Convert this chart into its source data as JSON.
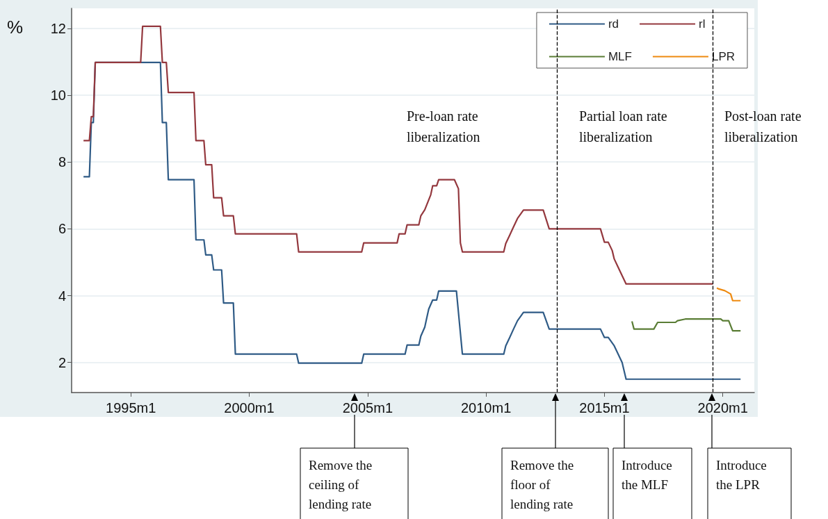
{
  "chart_data": {
    "type": "line",
    "ylabel": "%",
    "xlim": [
      "1992-07",
      "2021-05"
    ],
    "xticks": [
      {
        "value": "1995-01",
        "label": "1995m1"
      },
      {
        "value": "2000-01",
        "label": "2000m1"
      },
      {
        "value": "2005-01",
        "label": "2005m1"
      },
      {
        "value": "2010-01",
        "label": "2010m1"
      },
      {
        "value": "2015-01",
        "label": "2015m1"
      },
      {
        "value": "2020-01",
        "label": "2020m1"
      }
    ],
    "ylim": [
      1.1,
      12.6
    ],
    "yticks": [
      2,
      4,
      6,
      8,
      10,
      12
    ],
    "grid": "y",
    "legend": "top right",
    "marker": "none",
    "series": [
      {
        "name": "rd",
        "color": "#2f5b86",
        "x": [
          "1993-01",
          "1993-04",
          "1993-05",
          "1993-06",
          "1993-07",
          "1996-04",
          "1996-05",
          "1996-07",
          "1996-08",
          "1997-09",
          "1997-10",
          "1998-02",
          "1998-03",
          "1998-06",
          "1998-07",
          "1998-11",
          "1998-12",
          "1999-05",
          "1999-06",
          "2002-01",
          "2002-02",
          "2004-10",
          "2004-11",
          "2006-08",
          "2006-09",
          "2007-03",
          "2007-04",
          "2007-06",
          "2007-07",
          "2007-08",
          "2007-10",
          "2007-12",
          "2008-01",
          "2008-10",
          "2009-01",
          "2010-10",
          "2010-11",
          "2011-01",
          "2011-03",
          "2011-05",
          "2011-08",
          "2012-06",
          "2012-09",
          "2014-11",
          "2015-01",
          "2015-03",
          "2015-06",
          "2015-08",
          "2015-10",
          "2015-12",
          "2020-10"
        ],
        "values": [
          7.56,
          7.56,
          9.18,
          9.18,
          10.98,
          10.98,
          9.18,
          9.18,
          7.47,
          7.47,
          5.67,
          5.67,
          5.22,
          5.22,
          4.77,
          4.77,
          3.78,
          3.78,
          2.25,
          2.25,
          1.98,
          1.98,
          2.25,
          2.25,
          2.52,
          2.52,
          2.79,
          3.06,
          3.33,
          3.6,
          3.87,
          3.87,
          4.14,
          4.14,
          2.25,
          2.25,
          2.5,
          2.75,
          3.0,
          3.25,
          3.5,
          3.5,
          3.0,
          3.0,
          2.75,
          2.75,
          2.5,
          2.25,
          2.0,
          1.5,
          1.5
        ]
      },
      {
        "name": "rl",
        "color": "#94383e",
        "x": [
          "1993-01",
          "1993-04",
          "1993-05",
          "1993-06",
          "1993-07",
          "1995-06",
          "1995-07",
          "1996-04",
          "1996-05",
          "1996-07",
          "1996-08",
          "1997-09",
          "1997-10",
          "1998-02",
          "1998-03",
          "1998-06",
          "1998-07",
          "1998-11",
          "1998-12",
          "1999-05",
          "1999-06",
          "2002-01",
          "2002-02",
          "2004-10",
          "2004-11",
          "2006-04",
          "2006-05",
          "2006-08",
          "2006-09",
          "2007-03",
          "2007-04",
          "2007-06",
          "2007-09",
          "2007-10",
          "2007-12",
          "2008-01",
          "2008-09",
          "2008-11",
          "2008-12",
          "2009-01",
          "2010-10",
          "2010-11",
          "2011-01",
          "2011-03",
          "2011-05",
          "2011-08",
          "2012-06",
          "2012-09",
          "2014-11",
          "2015-01",
          "2015-03",
          "2015-05",
          "2015-06",
          "2015-08",
          "2015-10",
          "2015-12",
          "2019-08"
        ],
        "values": [
          8.64,
          8.64,
          9.36,
          9.36,
          10.98,
          10.98,
          12.06,
          12.06,
          10.98,
          10.98,
          10.08,
          10.08,
          8.64,
          8.64,
          7.92,
          7.92,
          6.93,
          6.93,
          6.39,
          6.39,
          5.85,
          5.85,
          5.31,
          5.31,
          5.58,
          5.58,
          5.85,
          5.85,
          6.12,
          6.12,
          6.39,
          6.57,
          7.02,
          7.29,
          7.29,
          7.47,
          7.47,
          7.2,
          5.58,
          5.31,
          5.31,
          5.56,
          5.81,
          6.06,
          6.31,
          6.56,
          6.56,
          6.0,
          6.0,
          5.6,
          5.6,
          5.35,
          5.1,
          4.85,
          4.6,
          4.35,
          4.35
        ]
      },
      {
        "name": "MLF",
        "color": "#5a7d35",
        "x": [
          "2016-03",
          "2016-04",
          "2017-02",
          "2017-04",
          "2018-01",
          "2018-02",
          "2018-06",
          "2019-12",
          "2020-01",
          "2020-04",
          "2020-06",
          "2020-10"
        ],
        "values": [
          3.23,
          3.0,
          3.0,
          3.2,
          3.2,
          3.25,
          3.3,
          3.3,
          3.25,
          3.25,
          2.95,
          2.95
        ]
      },
      {
        "name": "LPR",
        "color": "#ee8a10",
        "x": [
          "2019-10",
          "2019-11",
          "2020-02",
          "2020-05",
          "2020-06",
          "2020-10"
        ],
        "values": [
          4.23,
          4.2,
          4.15,
          4.05,
          3.85,
          3.85
        ]
      }
    ],
    "ref_lines": [
      {
        "axis": "x",
        "value": "2013-01",
        "label": null,
        "color": "#000000",
        "line_style": "dashed"
      },
      {
        "axis": "x",
        "value": "2019-08",
        "label": null,
        "color": "#000000",
        "line_style": "dashed"
      }
    ],
    "annotations": [
      "Pre-loan rate liberalization",
      "Partial loan rate liberalization",
      "Post-loan rate liberalization",
      "Remove the ceiling of lending rate",
      "Remove the floor of lending rate",
      "Introduce the MLF",
      "Introduce the LPR"
    ]
  }
}
